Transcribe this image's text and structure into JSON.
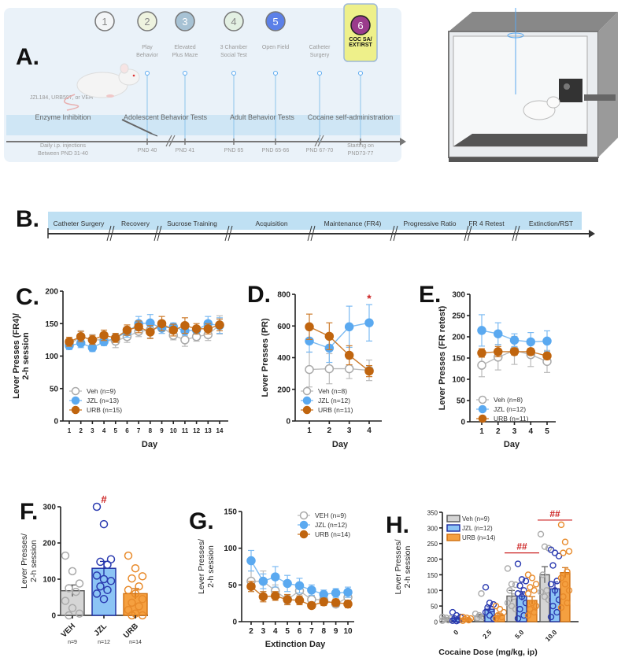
{
  "panel_a": {
    "label": "A.",
    "steps": [
      {
        "num": "1",
        "color": "#f3f5f7",
        "text_color": "#888"
      },
      {
        "num": "2",
        "color": "#eef3df",
        "text_color": "#888",
        "title": [
          "Play",
          "Behavior"
        ],
        "date": [
          "PND 40"
        ]
      },
      {
        "num": "3",
        "color": "#a7c2d4",
        "text_color": "#fff",
        "title": [
          "Elevated",
          "Plus Maze"
        ],
        "date": [
          "PND 41"
        ]
      },
      {
        "num": "4",
        "color": "#e3f0e3",
        "text_color": "#888",
        "title": [
          "3 Chamber",
          "Social Test"
        ],
        "date": [
          "PND 65"
        ]
      },
      {
        "num": "5",
        "color": "#5b80e8",
        "text_color": "#fff",
        "title": [
          "Open Field"
        ],
        "date": [
          "PND 65-66"
        ]
      },
      {
        "num": "6",
        "color": "#9a3b8c",
        "text_color": "#fff",
        "title": [
          "COC SA/",
          "EXT/RST"
        ],
        "date": [
          "Starting on",
          "PND73-77"
        ]
      }
    ],
    "catheter": {
      "title": [
        "Catheter",
        "Surgery"
      ],
      "date": [
        "PND 67-70"
      ]
    },
    "drugs": "JZL184, URB597, or VEH",
    "sections": [
      "Enzyme Inhibition",
      "Adolescent Behavior Tests",
      "Adult Behavior Tests",
      "Cocaine self-administration"
    ],
    "injections": [
      "Daily i.p. injections",
      "Between PND 31-40"
    ],
    "highlight_color": "#eef08a"
  },
  "panel_b": {
    "label": "B.",
    "phases": [
      "Catheter Surgery",
      "Recovery",
      "Sucrose Training",
      "Acquisition",
      "Maintenance (FR4)",
      "Progressive Ratio",
      "FR 4 Retest",
      "Extinction/RST"
    ]
  },
  "series_styles": {
    "Veh": {
      "stroke": "#aaaaaa",
      "fill": "#ffffff",
      "line": "#bbbbbb"
    },
    "JZL": {
      "stroke": "#5aa9f0",
      "fill": "#5aa9f0",
      "line": "#7bbaf2"
    },
    "URB": {
      "stroke": "#c0650f",
      "fill": "#c0650f",
      "line": "#cc7a2a"
    }
  },
  "chart_data": [
    {
      "id": "C",
      "label": "C.",
      "type": "line",
      "title": "",
      "xlabel": "Day",
      "ylabel": [
        "Lever Presses (FR4)/",
        "2-h session"
      ],
      "x": [
        1,
        2,
        3,
        4,
        5,
        6,
        7,
        8,
        9,
        10,
        11,
        12,
        13,
        14
      ],
      "ylim": [
        0,
        200
      ],
      "yticks": [
        0,
        50,
        100,
        150,
        200
      ],
      "series": [
        {
          "name": "Veh",
          "legend": "Veh (n=9)",
          "values": [
            118,
            130,
            125,
            125,
            123,
            130,
            138,
            140,
            145,
            132,
            125,
            130,
            133,
            148
          ],
          "err": [
            7,
            9,
            8,
            8,
            10,
            9,
            8,
            12,
            10,
            7,
            10,
            7,
            9,
            14
          ]
        },
        {
          "name": "JZL",
          "legend": "JZL (n=13)",
          "values": [
            116,
            120,
            113,
            122,
            128,
            137,
            150,
            151,
            143,
            145,
            139,
            140,
            150,
            147
          ],
          "err": [
            6,
            7,
            6,
            6,
            6,
            8,
            11,
            13,
            8,
            6,
            7,
            6,
            11,
            12
          ]
        },
        {
          "name": "URB",
          "legend": "URB (n=15)",
          "values": [
            122,
            130,
            125,
            132,
            128,
            140,
            145,
            137,
            150,
            140,
            147,
            142,
            142,
            148
          ],
          "err": [
            7,
            8,
            7,
            8,
            7,
            8,
            9,
            10,
            11,
            9,
            12,
            8,
            8,
            9
          ]
        }
      ]
    },
    {
      "id": "D",
      "label": "D.",
      "type": "line",
      "title": "",
      "xlabel": "Day",
      "ylabel": [
        "Lever Presses (PR)"
      ],
      "x": [
        1,
        2,
        3,
        4
      ],
      "ylim": [
        0,
        800
      ],
      "yticks": [
        0,
        200,
        400,
        600,
        800
      ],
      "series": [
        {
          "name": "Veh",
          "legend": "Veh (n=8)",
          "values": [
            325,
            330,
            330,
            320
          ],
          "err": [
            110,
            95,
            62,
            65
          ]
        },
        {
          "name": "JZL",
          "legend": "JZL (n=12)",
          "values": [
            505,
            460,
            595,
            620
          ],
          "err": [
            70,
            90,
            130,
            115
          ]
        },
        {
          "name": "URB",
          "legend": "URB (n=11)",
          "values": [
            595,
            535,
            415,
            315
          ],
          "err": [
            80,
            85,
            60,
            35
          ]
        }
      ],
      "annotations": [
        {
          "text": "*",
          "x": 4,
          "y": 780,
          "color": "#cc2222"
        }
      ]
    },
    {
      "id": "E",
      "label": "E.",
      "type": "line",
      "title": "",
      "xlabel": "Day",
      "ylabel": [
        "Lever Presses (FR retest)"
      ],
      "x": [
        1,
        2,
        3,
        4,
        5
      ],
      "ylim": [
        0,
        300
      ],
      "yticks": [
        0,
        50,
        100,
        150,
        200,
        250,
        300
      ],
      "series": [
        {
          "name": "Veh",
          "legend": "Veh (n=8)",
          "values": [
            133,
            152,
            168,
            158,
            142
          ],
          "err": [
            27,
            30,
            33,
            28,
            26
          ]
        },
        {
          "name": "JZL",
          "legend": "JZL (n=12)",
          "values": [
            215,
            207,
            192,
            188,
            190
          ],
          "err": [
            37,
            26,
            15,
            22,
            24
          ]
        },
        {
          "name": "URB",
          "legend": "URB (n=11)",
          "values": [
            162,
            165,
            165,
            165,
            155
          ],
          "err": [
            10,
            12,
            8,
            8,
            8
          ]
        }
      ]
    },
    {
      "id": "F",
      "label": "F.",
      "type": "bar",
      "title": "",
      "xlabel": "",
      "ylabel": [
        "Lever Presses/",
        "2-h session"
      ],
      "categories": [
        "VEH",
        "JZL",
        "URB"
      ],
      "n_labels": [
        "n=9",
        "n=12",
        "n=14"
      ],
      "ylim": [
        0,
        300
      ],
      "yticks": [
        0,
        100,
        200,
        300
      ],
      "values": [
        68,
        130,
        60
      ],
      "err": [
        16,
        19,
        14
      ],
      "points": [
        [
          165,
          122,
          88,
          75,
          65,
          40,
          20,
          5,
          0
        ],
        [
          300,
          252,
          155,
          148,
          140,
          110,
          100,
          95,
          80,
          70,
          60,
          45
        ],
        [
          165,
          130,
          108,
          102,
          80,
          70,
          60,
          45,
          35,
          25,
          15,
          5,
          0,
          0
        ]
      ],
      "colors": [
        {
          "fill": "#d6d6d6",
          "stroke": "#555555",
          "pt": "#aaaaaa"
        },
        {
          "fill": "#8cc4f5",
          "stroke": "#1a2aa0",
          "pt": "#2a3ab0"
        },
        {
          "fill": "#f5a040",
          "stroke": "#d07010",
          "pt": "#e88a2a"
        }
      ],
      "annotations": [
        {
          "text": "#",
          "category": "JZL",
          "y": 320,
          "color": "#cc2222"
        }
      ]
    },
    {
      "id": "G",
      "label": "G.",
      "type": "line",
      "title": "",
      "xlabel": "Extinction Day",
      "ylabel": [
        "Lever Presses/",
        "2-h session"
      ],
      "x": [
        2,
        3,
        4,
        5,
        6,
        7,
        8,
        9,
        10
      ],
      "ylim": [
        0,
        150
      ],
      "yticks": [
        0,
        50,
        100,
        150
      ],
      "series": [
        {
          "name": "Veh",
          "legend": "VEH (n=9)",
          "values": [
            55,
            55,
            42,
            30,
            42,
            30,
            30,
            24,
            33
          ],
          "err": [
            14,
            14,
            8,
            6,
            8,
            5,
            5,
            4,
            5
          ]
        },
        {
          "name": "JZL",
          "legend": "JZL (n=12)",
          "values": [
            83,
            55,
            61,
            52,
            49,
            43,
            37,
            39,
            40
          ],
          "err": [
            14,
            10,
            14,
            11,
            10,
            7,
            6,
            6,
            7
          ]
        },
        {
          "name": "URB",
          "legend": "URB (n=14)",
          "values": [
            48,
            34,
            35,
            30,
            29,
            22,
            27,
            26,
            24
          ],
          "err": [
            7,
            7,
            6,
            7,
            6,
            4,
            5,
            5,
            5
          ]
        }
      ]
    },
    {
      "id": "H",
      "label": "H.",
      "type": "bar",
      "title": "",
      "xlabel": "Cocaine Dose  (mg/kg, ip)",
      "ylabel": [
        "Lever Presses/",
        "2-h session"
      ],
      "categories": [
        "0",
        "2.5",
        "5.0",
        "10.0"
      ],
      "ylim": [
        0,
        350
      ],
      "yticks": [
        0,
        50,
        100,
        150,
        200,
        250,
        300,
        350
      ],
      "series": [
        {
          "name": "Veh",
          "legend": "Veh (n=9)",
          "values": [
            10,
            18,
            82,
            150
          ],
          "err": [
            3,
            5,
            18,
            26
          ],
          "points": [
            [
              15,
              12,
              10,
              8,
              5,
              3
            ],
            [
              25,
              20,
              15,
              12,
              90
            ],
            [
              170,
              120,
              118,
              100,
              80,
              60,
              50,
              40
            ],
            [
              280,
              240,
              235,
              150,
              100,
              95,
              80,
              70
            ]
          ]
        },
        {
          "name": "JZL",
          "legend": "JZL (n=12)",
          "values": [
            10,
            40,
            82,
            105
          ],
          "err": [
            3,
            8,
            14,
            22
          ],
          "points": [
            [
              30,
              20,
              15,
              10,
              5,
              3,
              2
            ],
            [
              110,
              60,
              55,
              45,
              40,
              30,
              20,
              10
            ],
            [
              185,
              135,
              130,
              115,
              100,
              90,
              80,
              60,
              40,
              20,
              10
            ],
            [
              230,
              220,
              210,
              180,
              130,
              120,
              100,
              70,
              50,
              30,
              15
            ]
          ]
        },
        {
          "name": "URB",
          "legend": "URB (n=14)",
          "values": [
            8,
            20,
            68,
            157
          ],
          "err": [
            2,
            5,
            12,
            16
          ],
          "points": [
            [
              15,
              12,
              10,
              8,
              5,
              3
            ],
            [
              50,
              40,
              30,
              20,
              15,
              10
            ],
            [
              150,
              140,
              120,
              110,
              100,
              90,
              60,
              50,
              40,
              30,
              20
            ],
            [
              310,
              255,
              225,
              220,
              160,
              140,
              120,
              100,
              80,
              60,
              45
            ]
          ]
        }
      ],
      "colors": [
        {
          "fill": "#d4d4d4",
          "stroke": "#555555",
          "pt": "#aaaaaa"
        },
        {
          "fill": "#8cc4f5",
          "stroke": "#1a2aa0",
          "pt": "#2a3ab0"
        },
        {
          "fill": "#f5a040",
          "stroke": "#d07010",
          "pt": "#e88a2a"
        }
      ],
      "annotations": [
        {
          "text": "##",
          "category": "5.0",
          "y": 230,
          "color": "#cc2222"
        },
        {
          "text": "##",
          "category": "10.0",
          "y": 335,
          "color": "#cc2222"
        }
      ]
    }
  ]
}
